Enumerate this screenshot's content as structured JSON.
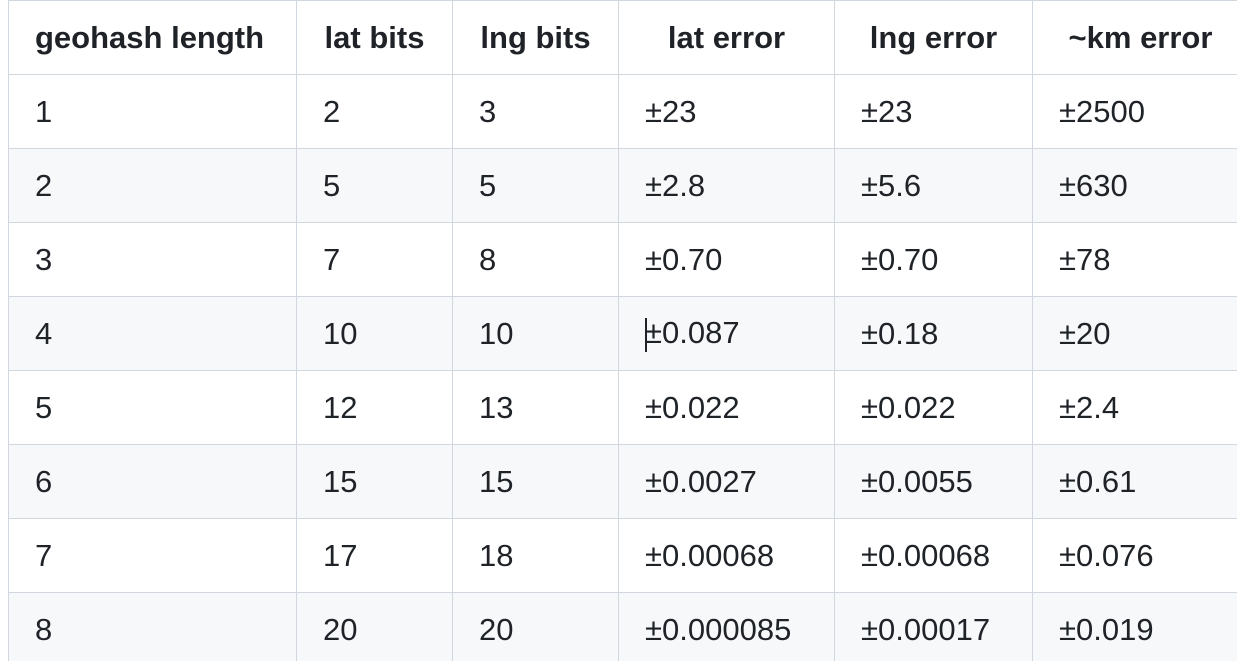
{
  "table": {
    "headers": [
      "geohash length",
      "lat bits",
      "lng bits",
      "lat error",
      "lng error",
      "~km error"
    ],
    "rows": [
      [
        "1",
        "2",
        "3",
        "±23",
        "±23",
        "±2500"
      ],
      [
        "2",
        "5",
        "5",
        "±2.8",
        "±5.6",
        "±630"
      ],
      [
        "3",
        "7",
        "8",
        "±0.70",
        "±0.70",
        "±78"
      ],
      [
        "4",
        "10",
        "10",
        "±0.087",
        "±0.18",
        "±20"
      ],
      [
        "5",
        "12",
        "13",
        "±0.022",
        "±0.022",
        "±2.4"
      ],
      [
        "6",
        "15",
        "15",
        "±0.0027",
        "±0.0055",
        "±0.61"
      ],
      [
        "7",
        "17",
        "18",
        "±0.00068",
        "±0.00068",
        "±0.076"
      ],
      [
        "8",
        "20",
        "20",
        "±0.000085",
        "±0.00017",
        "±0.019"
      ]
    ]
  }
}
